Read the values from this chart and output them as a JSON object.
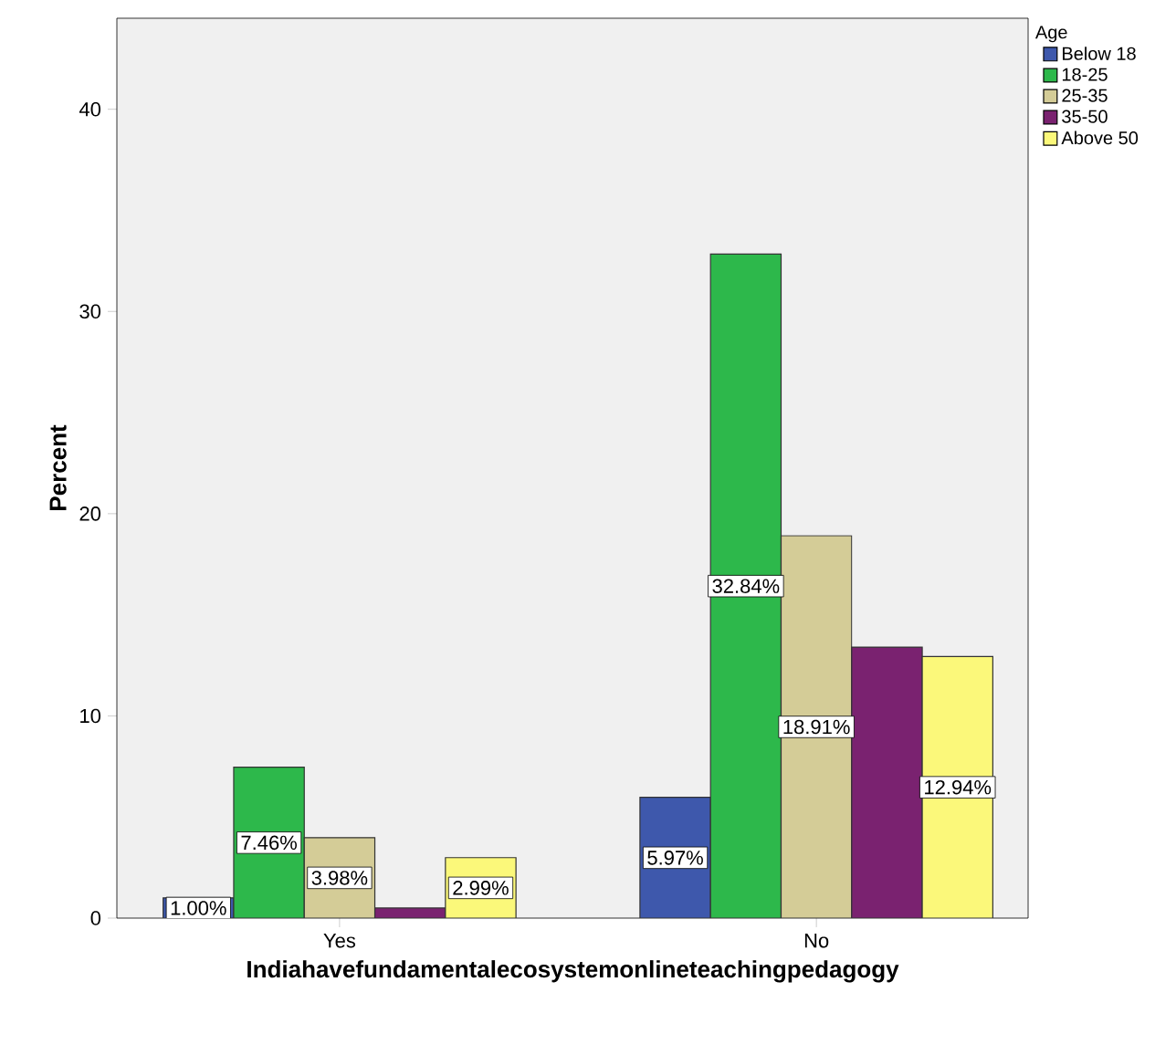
{
  "chart_data": {
    "type": "bar",
    "xlabel": "Indiahavefundamentalecosystemonlineteachingpedagogy",
    "ylabel": "Percent",
    "legend_title": "Age",
    "categories": [
      "Yes",
      "No"
    ],
    "series": [
      {
        "name": "Below 18",
        "color": "#3e58ac",
        "values": [
          1.0,
          5.97
        ],
        "value_labels": [
          "1.00%",
          "5.97%"
        ]
      },
      {
        "name": "18-25",
        "color": "#2db84b",
        "values": [
          7.46,
          32.84
        ],
        "value_labels": [
          "7.46%",
          "32.84%"
        ]
      },
      {
        "name": "25-35",
        "color": "#d4cc97",
        "values": [
          3.98,
          18.91
        ],
        "value_labels": [
          "3.98%",
          "18.91%"
        ]
      },
      {
        "name": "35-50",
        "color": "#7a2270",
        "values": [
          0.5,
          13.4
        ],
        "value_labels": [
          null,
          null
        ]
      },
      {
        "name": "Above 50",
        "color": "#fbf87a",
        "values": [
          2.99,
          12.94
        ],
        "value_labels": [
          "2.99%",
          "12.94%"
        ]
      }
    ],
    "ylim": [
      0,
      44.5
    ],
    "yticks": [
      0,
      10,
      20,
      30,
      40
    ],
    "legend": "right"
  }
}
